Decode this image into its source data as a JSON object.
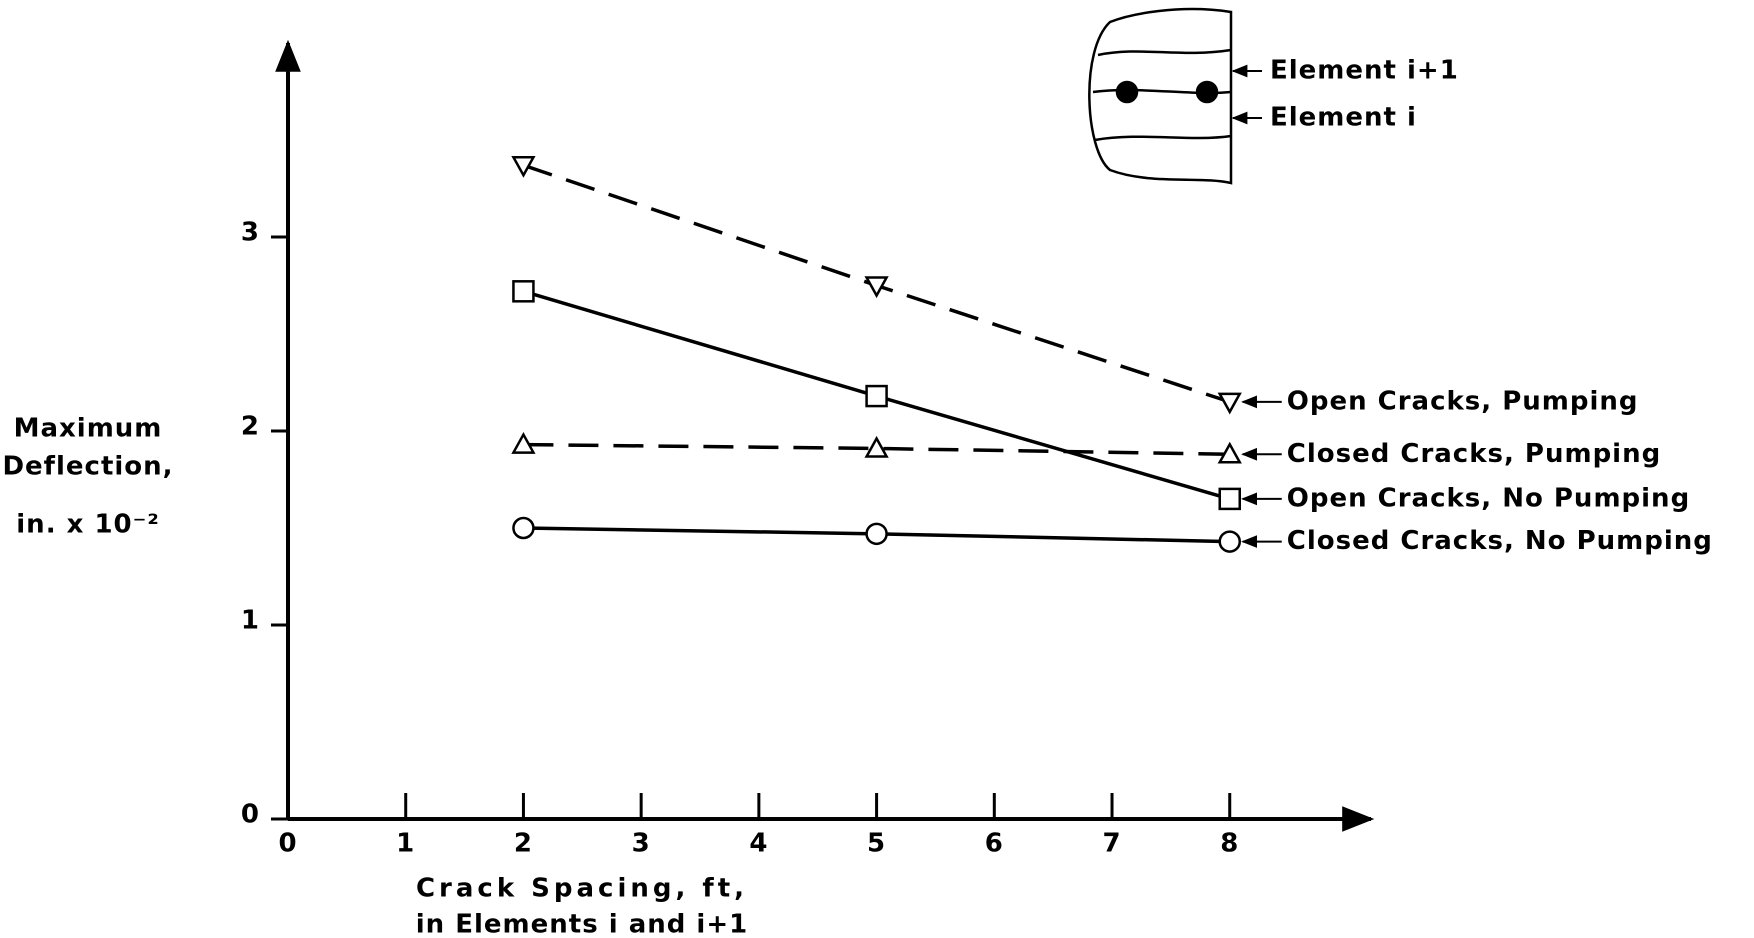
{
  "chart_data": {
    "type": "line",
    "x_label": [
      "Crack Spacing, ft,",
      "in Elements i and i+1"
    ],
    "y_label": [
      "Maximum",
      "Deflection,",
      "in. x 10⁻²"
    ],
    "x": [
      2,
      5,
      8
    ],
    "series": [
      {
        "name": "Open Cracks, Pumping",
        "color": "#000000",
        "linestyle": "dashed",
        "marker": "triangle-down",
        "values": [
          3.37,
          2.75,
          2.15
        ]
      },
      {
        "name": "Closed Cracks, Pumping",
        "color": "#000000",
        "linestyle": "dashed",
        "marker": "triangle-up",
        "values": [
          1.93,
          1.91,
          1.88
        ]
      },
      {
        "name": "Open Cracks, No Pumping",
        "color": "#000000",
        "linestyle": "solid",
        "marker": "square",
        "values": [
          2.72,
          2.18,
          1.65
        ]
      },
      {
        "name": "Closed Cracks, No Pumping",
        "color": "#000000",
        "linestyle": "solid",
        "marker": "circle",
        "values": [
          1.5,
          1.47,
          1.43
        ]
      }
    ],
    "xlim": [
      0,
      9.2
    ],
    "ylim": [
      0,
      4
    ],
    "xticks": [
      0,
      1,
      2,
      3,
      4,
      5,
      6,
      7,
      8
    ],
    "yticks": [
      0,
      1,
      2,
      3
    ],
    "inset_labels": [
      "Element i+1",
      "Element i"
    ]
  }
}
